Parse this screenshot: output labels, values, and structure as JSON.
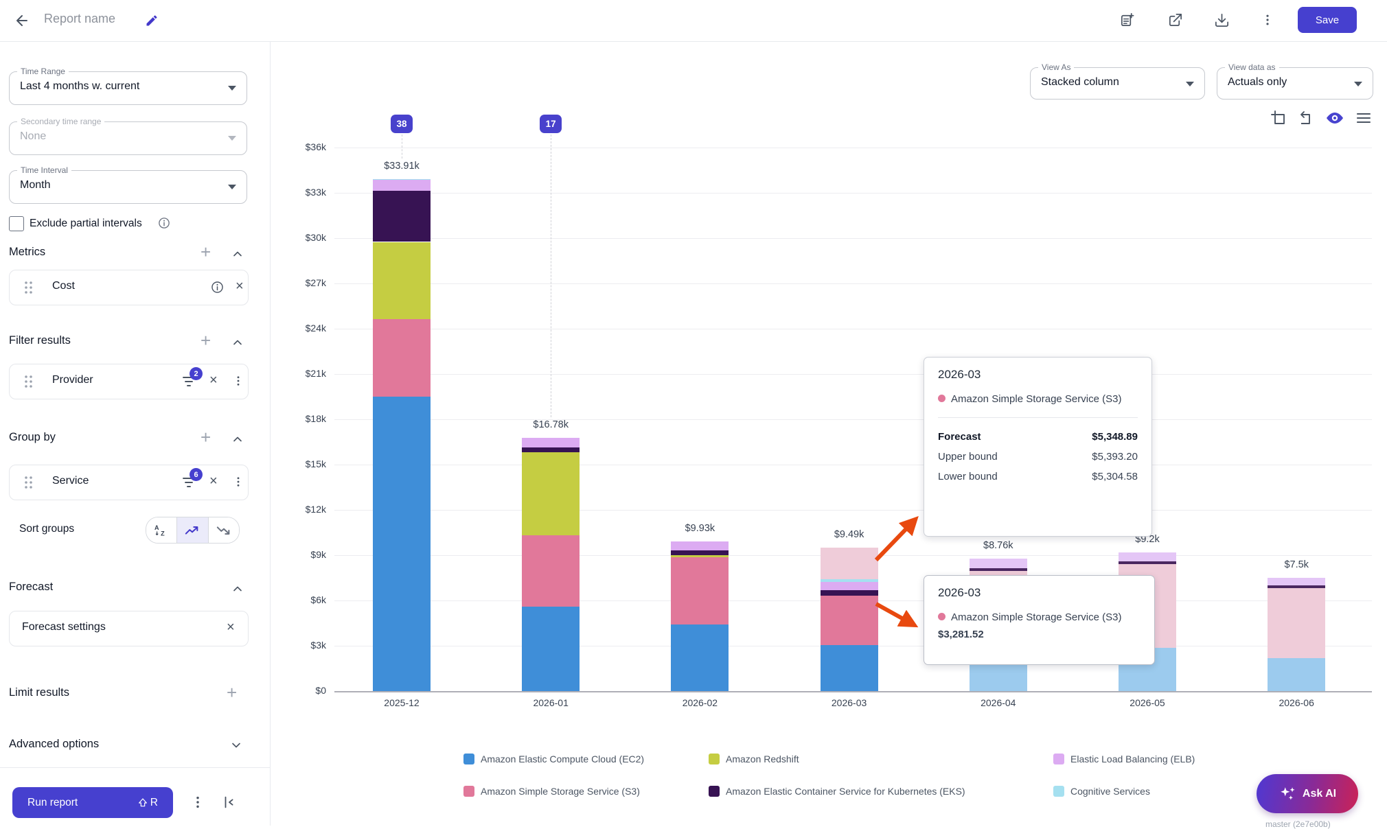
{
  "topbar": {
    "title": "Report name",
    "save_label": "Save"
  },
  "sidebar": {
    "time_range": {
      "label": "Time Range",
      "value": "Last 4 months w. current"
    },
    "secondary_time_range": {
      "label": "Secondary time range",
      "value": "None"
    },
    "time_interval": {
      "label": "Time Interval",
      "value": "Month"
    },
    "exclude_partial_label": "Exclude partial intervals",
    "sections": {
      "metrics": "Metrics",
      "filter": "Filter results",
      "group": "Group by",
      "sort": "Sort groups",
      "forecast": "Forecast",
      "limit": "Limit results",
      "advanced": "Advanced options"
    },
    "metric_card": {
      "label": "Cost"
    },
    "filter_card": {
      "label": "Provider",
      "badge": "2"
    },
    "group_card": {
      "label": "Service",
      "badge": "6"
    },
    "forecast_card": {
      "label": "Forecast settings"
    },
    "run_report": {
      "label": "Run report",
      "shortcut_key": "R"
    }
  },
  "controls": {
    "view_as": {
      "label": "View As",
      "value": "Stacked column"
    },
    "view_data_as": {
      "label": "View data as",
      "value": "Actuals only"
    }
  },
  "tooltips": [
    {
      "period": "2026-03",
      "series": "Amazon Simple Storage Service (S3)",
      "rows": [
        [
          "Forecast",
          "$5,348.89"
        ],
        [
          "Upper bound",
          "$5,393.20"
        ],
        [
          "Lower bound",
          "$5,304.58"
        ]
      ]
    },
    {
      "period": "2026-03",
      "series": "Amazon Simple Storage Service (S3)",
      "value": "$3,281.52"
    }
  ],
  "ask_ai_label": "Ask AI",
  "version_tag": "master (2e7e00b)",
  "chart_data": {
    "type": "bar",
    "stacked": true,
    "ylabel": "Cost",
    "ylim_dollars": [
      0,
      36000
    ],
    "ytick_labels": [
      "$36k",
      "$33k",
      "$30k",
      "$27k",
      "$24k",
      "$21k",
      "$18k",
      "$15k",
      "$12k",
      "$9k",
      "$6k",
      "$3k",
      "$0"
    ],
    "categories": [
      "2025-12",
      "2026-01",
      "2026-02",
      "2026-03",
      "2026-04",
      "2026-05",
      "2026-06"
    ],
    "column_labels": [
      "$33.91k",
      "$16.78k",
      "$9.93k",
      "$9.49k",
      "$8.76k",
      "$9.2k",
      "$7.5k"
    ],
    "badges": [
      {
        "column": 0,
        "label": "38"
      },
      {
        "column": 1,
        "label": "17"
      }
    ],
    "palette": {
      "ec2": "#3f8ed8",
      "s3": "#e1789a",
      "redshift": "#c5cd42",
      "eks": "#371353",
      "elb": "#dcabf2",
      "cognitive": "#a5e0f0",
      "ec2_forecast": "#9ccbee",
      "s3_forecast": "#efccd9",
      "eks_forecast": "#4a2760",
      "elb_forecast": "#e4c6f6"
    },
    "legend": [
      {
        "key": "ec2",
        "label": "Amazon Elastic Compute Cloud (EC2)"
      },
      {
        "key": "redshift",
        "label": "Amazon Redshift"
      },
      {
        "key": "elb",
        "label": "Elastic Load Balancing (ELB)"
      },
      {
        "key": "s3",
        "label": "Amazon Simple Storage Service (S3)"
      },
      {
        "key": "eks",
        "label": "Amazon Elastic Container Service for Kubernetes (EKS)"
      },
      {
        "key": "cognitive",
        "label": "Cognitive Services"
      }
    ],
    "columns": [
      {
        "category": "2025-12",
        "total_label": "$33.91k",
        "badge": "38",
        "segments": [
          {
            "key": "ec2",
            "value_k": 19.5
          },
          {
            "key": "s3",
            "value_k": 5.15
          },
          {
            "key": "redshift",
            "value_k": 5.1
          },
          {
            "key": "eks",
            "value_k": 3.4
          },
          {
            "key": "elb",
            "value_k": 0.7
          },
          {
            "key": "cognitive",
            "value_k": 0.06
          }
        ]
      },
      {
        "category": "2026-01",
        "total_label": "$16.78k",
        "badge": "17",
        "segments": [
          {
            "key": "ec2",
            "value_k": 5.6
          },
          {
            "key": "s3",
            "value_k": 4.7
          },
          {
            "key": "redshift",
            "value_k": 5.5
          },
          {
            "key": "eks",
            "value_k": 0.35
          },
          {
            "key": "elb",
            "value_k": 0.63
          }
        ]
      },
      {
        "category": "2026-02",
        "total_label": "$9.93k",
        "segments": [
          {
            "key": "ec2",
            "value_k": 4.4
          },
          {
            "key": "s3",
            "value_k": 4.45
          },
          {
            "key": "redshift",
            "value_k": 0.13
          },
          {
            "key": "eks",
            "value_k": 0.35
          },
          {
            "key": "elb",
            "value_k": 0.6
          }
        ]
      },
      {
        "category": "2026-03",
        "total_label": "$9.49k",
        "segments": [
          {
            "key": "ec2",
            "value_k": 3.05
          },
          {
            "key": "s3",
            "value_k": 3.28
          },
          {
            "key": "eks",
            "value_k": 0.36
          },
          {
            "key": "elb",
            "value_k": 0.55
          },
          {
            "key": "cognitive",
            "value_k": 0.18
          },
          {
            "key": "s3_forecast",
            "value_k": 2.07
          }
        ]
      },
      {
        "category": "2026-04",
        "total_label": "$8.76k",
        "segments": [
          {
            "key": "ec2_forecast",
            "value_k": 2.75
          },
          {
            "key": "s3_forecast",
            "value_k": 5.2
          },
          {
            "key": "eks_forecast",
            "value_k": 0.2
          },
          {
            "key": "elb_forecast",
            "value_k": 0.61
          }
        ]
      },
      {
        "category": "2026-05",
        "total_label": "$9.2k",
        "segments": [
          {
            "key": "ec2_forecast",
            "value_k": 2.85
          },
          {
            "key": "s3_forecast",
            "value_k": 5.55
          },
          {
            "key": "eks_forecast",
            "value_k": 0.2
          },
          {
            "key": "elb_forecast",
            "value_k": 0.6
          }
        ]
      },
      {
        "category": "2026-06",
        "total_label": "$7.5k",
        "segments": [
          {
            "key": "ec2_forecast",
            "value_k": 2.2
          },
          {
            "key": "s3_forecast",
            "value_k": 4.6
          },
          {
            "key": "eks_forecast",
            "value_k": 0.18
          },
          {
            "key": "elb_forecast",
            "value_k": 0.52
          }
        ]
      }
    ]
  }
}
